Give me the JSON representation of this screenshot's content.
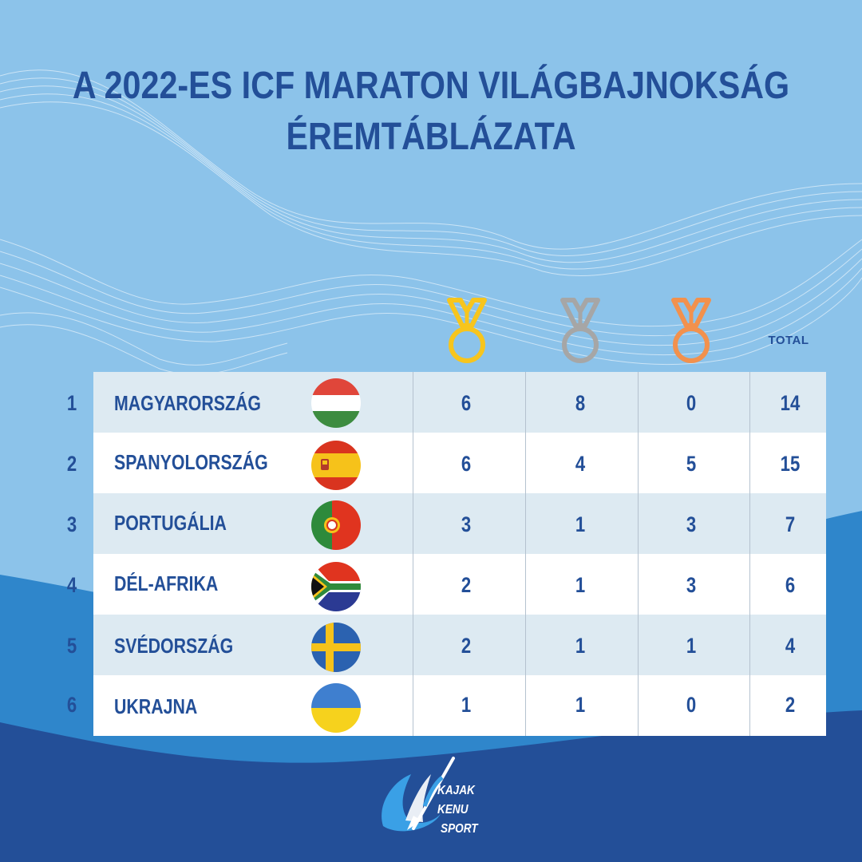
{
  "title": {
    "line1": "A 2022-ES ICF MARATON VILÁGBAJNOKSÁG",
    "line2": "ÉREMTÁBLÁZATA"
  },
  "columns": {
    "gold_icon": "gold-medal-icon",
    "silver_icon": "silver-medal-icon",
    "bronze_icon": "bronze-medal-icon",
    "total_label": "TOTAL"
  },
  "rows": [
    {
      "rank": "1",
      "country": "MAGYARORSZÁG",
      "flag": "hungary-flag-icon",
      "gold": "6",
      "silver": "8",
      "bronze": "0",
      "total": "14"
    },
    {
      "rank": "2",
      "country": "SPANYOLORSZÁG",
      "flag": "spain-flag-icon",
      "gold": "6",
      "silver": "4",
      "bronze": "5",
      "total": "15"
    },
    {
      "rank": "3",
      "country": "PORTUGÁLIA",
      "flag": "portugal-flag-icon",
      "gold": "3",
      "silver": "1",
      "bronze": "3",
      "total": "7"
    },
    {
      "rank": "4",
      "country": "DÉL-AFRIKA",
      "flag": "south-africa-flag-icon",
      "gold": "2",
      "silver": "1",
      "bronze": "3",
      "total": "6"
    },
    {
      "rank": "5",
      "country": "SVÉDORSZÁG",
      "flag": "sweden-flag-icon",
      "gold": "2",
      "silver": "1",
      "bronze": "1",
      "total": "4"
    },
    {
      "rank": "6",
      "country": "UKRAJNA",
      "flag": "ukraine-flag-icon",
      "gold": "1",
      "silver": "1",
      "bronze": "0",
      "total": "2"
    }
  ],
  "logo": {
    "line1": "KAJAK",
    "line2": "KENU",
    "line3": "SPORT"
  },
  "colors": {
    "text": "#234f98",
    "gold": "#f7c51d",
    "silver": "#a6a6a6",
    "bronze": "#f2914d",
    "background": "#8cc3ea"
  }
}
